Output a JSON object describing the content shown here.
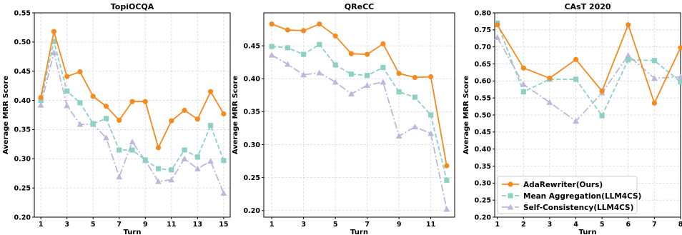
{
  "colors": {
    "adarewriter": "#F58A1F",
    "mean_aggregation": "#8ED1C4",
    "self_consistency": "#BFB6DC",
    "grid": "#d9d9d9"
  },
  "legend": {
    "placement": "lower-left of third panel",
    "entries": [
      "AdaRewriter(Ours)",
      "Mean Aggregation(LLM4CS)",
      "Self-Consistency(LLM4CS)"
    ]
  },
  "chart_data": [
    {
      "type": "line",
      "title": "TopiOCQA",
      "xlabel": "Turn",
      "ylabel": "Average MRR Score",
      "ylim": [
        0.2,
        0.55
      ],
      "yticks": [
        "0.20",
        "0.25",
        "0.30",
        "0.35",
        "0.40",
        "0.45",
        "0.50",
        "0.55"
      ],
      "xlim": [
        0.5,
        15.5
      ],
      "xticks": [
        "1",
        "3",
        "5",
        "7",
        "9",
        "11",
        "13",
        "15"
      ],
      "grid": true,
      "x": [
        1,
        2,
        3,
        4,
        5,
        6,
        7,
        8,
        9,
        10,
        11,
        12,
        13,
        14,
        15
      ],
      "series": [
        {
          "name": "AdaRewriter(Ours)",
          "marker": "circle",
          "values": [
            0.405,
            0.518,
            0.441,
            0.449,
            0.407,
            0.39,
            0.366,
            0.398,
            0.398,
            0.319,
            0.365,
            0.383,
            0.368,
            0.415,
            0.377
          ]
        },
        {
          "name": "Mean Aggregation(LLM4CS)",
          "marker": "square",
          "values": [
            0.4,
            0.501,
            0.416,
            0.396,
            0.36,
            0.369,
            0.315,
            0.315,
            0.298,
            0.283,
            0.281,
            0.315,
            0.303,
            0.357,
            0.297
          ]
        },
        {
          "name": "Self-Consistency(LLM4CS)",
          "marker": "triangle",
          "values": [
            0.392,
            0.482,
            0.391,
            0.359,
            0.359,
            0.336,
            0.269,
            0.329,
            0.297,
            0.261,
            0.264,
            0.3,
            0.283,
            0.296,
            0.241
          ]
        }
      ]
    },
    {
      "type": "line",
      "title": "QReCC",
      "xlabel": "Turn",
      "ylabel": "Average MRR Score",
      "ylim": [
        0.19,
        0.5
      ],
      "yticks": [
        "0.20",
        "0.25",
        "0.30",
        "0.35",
        "0.40",
        "0.45"
      ],
      "ytick_values": [
        0.2,
        0.25,
        0.3,
        0.35,
        0.4,
        0.45
      ],
      "xlim": [
        0.5,
        12.5
      ],
      "xticks": [
        "1",
        "3",
        "5",
        "7",
        "9",
        "11"
      ],
      "grid": true,
      "x": [
        1,
        2,
        3,
        4,
        5,
        6,
        7,
        8,
        9,
        10,
        11,
        12
      ],
      "series": [
        {
          "name": "AdaRewriter(Ours)",
          "marker": "circle",
          "values": [
            0.483,
            0.474,
            0.473,
            0.483,
            0.465,
            0.438,
            0.437,
            0.453,
            0.408,
            0.402,
            0.403,
            0.268
          ]
        },
        {
          "name": "Mean Aggregation(LLM4CS)",
          "marker": "square",
          "values": [
            0.449,
            0.447,
            0.437,
            0.452,
            0.421,
            0.407,
            0.405,
            0.417,
            0.38,
            0.372,
            0.345,
            0.246
          ]
        },
        {
          "name": "Self-Consistency(LLM4CS)",
          "marker": "triangle",
          "values": [
            0.436,
            0.422,
            0.406,
            0.409,
            0.395,
            0.377,
            0.39,
            0.395,
            0.313,
            0.327,
            0.317,
            0.202
          ]
        }
      ]
    },
    {
      "type": "line",
      "title": "CAsT 2020",
      "xlabel": "Turn",
      "ylabel": "Average MRR Score",
      "ylim": [
        0.2,
        0.8
      ],
      "yticks": [
        "0.20",
        "0.25",
        "0.30",
        "0.35",
        "0.40",
        "0.45",
        "0.50",
        "0.55",
        "0.60",
        "0.65",
        "0.70",
        "0.75",
        "0.80"
      ],
      "xlim": [
        0.9,
        8.0
      ],
      "xticks": [
        "1",
        "2",
        "3",
        "4",
        "5",
        "6",
        "7",
        "8"
      ],
      "grid": true,
      "x": [
        1,
        2,
        3,
        4,
        5,
        6,
        7,
        8
      ],
      "series": [
        {
          "name": "AdaRewriter(Ours)",
          "marker": "circle",
          "values": [
            0.765,
            0.638,
            0.608,
            0.663,
            0.57,
            0.765,
            0.535,
            0.698
          ]
        },
        {
          "name": "Mean Aggregation(LLM4CS)",
          "marker": "square",
          "values": [
            0.77,
            0.568,
            0.605,
            0.605,
            0.498,
            0.662,
            0.66,
            0.597
          ]
        },
        {
          "name": "Self-Consistency(LLM4CS)",
          "marker": "triangle",
          "values": [
            0.728,
            0.59,
            0.537,
            0.482,
            0.565,
            0.675,
            0.608,
            0.612
          ]
        }
      ]
    }
  ]
}
